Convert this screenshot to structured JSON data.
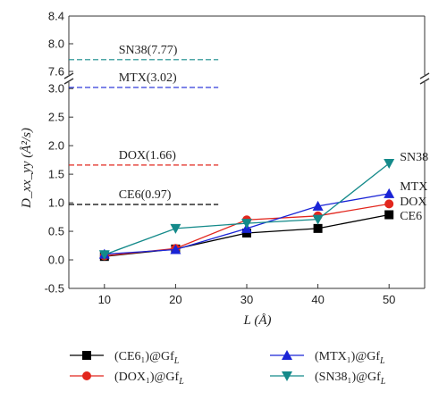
{
  "chart_data": {
    "type": "line",
    "xlabel": "L (Å)",
    "ylabel": "D_xx_yy (Å²/s)",
    "x": [
      10,
      20,
      30,
      40,
      50
    ],
    "xlim": [
      5,
      55
    ],
    "xticks": [
      10,
      20,
      30,
      40,
      50
    ],
    "y_axis_broken": true,
    "ylim_lower": [
      -0.5,
      3.05
    ],
    "ylim_upper": [
      7.6,
      8.4
    ],
    "yticks_lower": [
      "-0.5",
      "0.0",
      "0.5",
      "1.0",
      "1.5",
      "2.0",
      "2.5",
      "3.0"
    ],
    "yticks_upper": [
      "7.6",
      "8.0",
      "8.4"
    ],
    "grid": false,
    "legend_position": "bottom",
    "series": [
      {
        "key": "ce6",
        "legend_text": "(CE6₁)@Gf",
        "legend_sub": "L",
        "end_label": "CE6",
        "color": "#000000",
        "marker": "square",
        "values": [
          0.06,
          0.19,
          0.47,
          0.55,
          0.79
        ]
      },
      {
        "key": "dox",
        "legend_text": "(DOX₁)@Gf",
        "legend_sub": "L",
        "end_label": "DOX",
        "color": "#e2261d",
        "marker": "circle",
        "values": [
          0.07,
          0.2,
          0.7,
          0.77,
          0.98
        ]
      },
      {
        "key": "mtx",
        "legend_text": "(MTX₁)@Gf",
        "legend_sub": "L",
        "end_label": "MTX",
        "color": "#1a24d6",
        "marker": "triangle-up",
        "values": [
          0.1,
          0.18,
          0.55,
          0.94,
          1.16
        ]
      },
      {
        "key": "sn38",
        "legend_text": "(SN38₁)@Gf",
        "legend_sub": "L",
        "end_label": "SN38",
        "color": "#148a8a",
        "marker": "triangle-down",
        "values": [
          0.09,
          0.55,
          0.64,
          0.71,
          1.69
        ]
      }
    ],
    "reference_lines": [
      {
        "label": "SN38(7.77)",
        "value": 7.77,
        "color": "#148a8a",
        "segment": "upper"
      },
      {
        "label": "MTX(3.02)",
        "value": 3.02,
        "color": "#1a24d6",
        "segment": "lower"
      },
      {
        "label": "DOX(1.66)",
        "value": 1.66,
        "color": "#e2261d",
        "segment": "lower"
      },
      {
        "label": "CE6(0.97)",
        "value": 0.97,
        "color": "#000000",
        "segment": "lower"
      }
    ]
  }
}
